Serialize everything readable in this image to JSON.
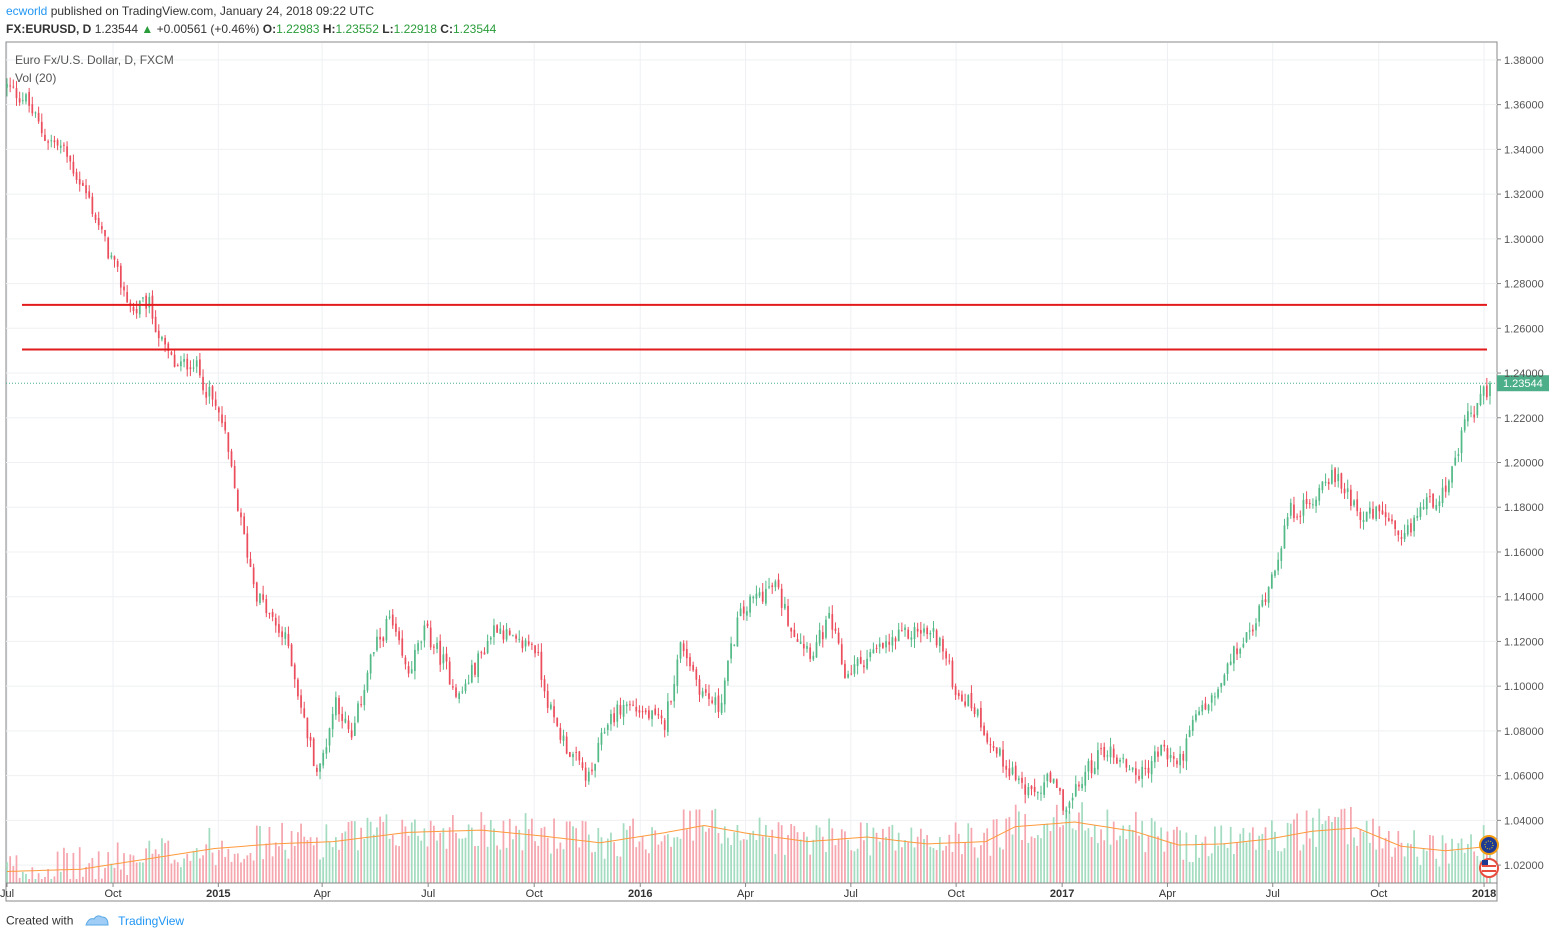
{
  "header": {
    "author": "ecworld",
    "published_text": "published on TradingView.com, January 24, 2018 09:22 UTC",
    "symbol": "FX:EURUSD, D",
    "last": "1.23544",
    "change": "+0.00561 (+0.46%)",
    "o_label": "O:",
    "o_value": "1.22983",
    "h_label": "H:",
    "h_value": "1.23552",
    "l_label": "L:",
    "l_value": "1.22918",
    "c_label": "C:",
    "c_value": "1.23544"
  },
  "legend": {
    "title": "Euro Fx/U.S. Dollar, D, FXCM",
    "volume": "Vol (20)"
  },
  "footer": {
    "created_with": "Created with",
    "brand": "TradingView"
  },
  "colors": {
    "up": "#53b987",
    "down": "#eb4d5c",
    "vol_up": "#a3dcc0",
    "vol_down": "#f5a6ae",
    "ma": "#ff9a3c",
    "hline": "#e31a1c",
    "price_label_bg": "#4caf8a"
  },
  "chart_data": {
    "type": "candlestick",
    "title": "Euro Fx/U.S. Dollar, D, FXCM",
    "symbol": "FX:EURUSD",
    "last_price": 1.23544,
    "last_price_label": "1.23544",
    "ylim": [
      1.012,
      1.388
    ],
    "y_ticks": [
      "1.38000",
      "1.36000",
      "1.34000",
      "1.32000",
      "1.30000",
      "1.28000",
      "1.26000",
      "1.24000",
      "1.22000",
      "1.20000",
      "1.18000",
      "1.16000",
      "1.14000",
      "1.12000",
      "1.10000",
      "1.08000",
      "1.06000",
      "1.04000",
      "1.02000"
    ],
    "x_ticks": [
      {
        "label": "Jul",
        "bold": false,
        "t": 0.0
      },
      {
        "label": "Oct",
        "bold": false,
        "t": 0.0715
      },
      {
        "label": "2015",
        "bold": true,
        "t": 0.1425
      },
      {
        "label": "Apr",
        "bold": false,
        "t": 0.2125
      },
      {
        "label": "Jul",
        "bold": false,
        "t": 0.284
      },
      {
        "label": "Oct",
        "bold": false,
        "t": 0.3555
      },
      {
        "label": "2016",
        "bold": true,
        "t": 0.427
      },
      {
        "label": "Apr",
        "bold": false,
        "t": 0.498
      },
      {
        "label": "Jul",
        "bold": false,
        "t": 0.569
      },
      {
        "label": "Oct",
        "bold": false,
        "t": 0.64
      },
      {
        "label": "2017",
        "bold": true,
        "t": 0.7115
      },
      {
        "label": "Apr",
        "bold": false,
        "t": 0.7825
      },
      {
        "label": "Jul",
        "bold": false,
        "t": 0.8535
      },
      {
        "label": "Oct",
        "bold": false,
        "t": 0.925
      },
      {
        "label": "2018",
        "bold": true,
        "t": 0.996
      }
    ],
    "horizontal_lines": [
      1.2705,
      1.2505
    ],
    "close_path": [
      [
        0.0,
        1.368
      ],
      [
        0.013,
        1.362
      ],
      [
        0.025,
        1.346
      ],
      [
        0.038,
        1.34
      ],
      [
        0.055,
        1.318
      ],
      [
        0.065,
        1.3
      ],
      [
        0.075,
        1.283
      ],
      [
        0.085,
        1.267
      ],
      [
        0.095,
        1.272
      ],
      [
        0.105,
        1.252
      ],
      [
        0.115,
        1.242
      ],
      [
        0.125,
        1.246
      ],
      [
        0.135,
        1.232
      ],
      [
        0.145,
        1.218
      ],
      [
        0.158,
        1.172
      ],
      [
        0.168,
        1.142
      ],
      [
        0.178,
        1.13
      ],
      [
        0.19,
        1.118
      ],
      [
        0.2,
        1.085
      ],
      [
        0.21,
        1.06
      ],
      [
        0.222,
        1.095
      ],
      [
        0.232,
        1.075
      ],
      [
        0.245,
        1.112
      ],
      [
        0.258,
        1.13
      ],
      [
        0.27,
        1.105
      ],
      [
        0.282,
        1.125
      ],
      [
        0.295,
        1.11
      ],
      [
        0.305,
        1.095
      ],
      [
        0.318,
        1.112
      ],
      [
        0.33,
        1.128
      ],
      [
        0.343,
        1.118
      ],
      [
        0.355,
        1.12
      ],
      [
        0.368,
        1.085
      ],
      [
        0.38,
        1.07
      ],
      [
        0.393,
        1.058
      ],
      [
        0.405,
        1.085
      ],
      [
        0.418,
        1.092
      ],
      [
        0.43,
        1.088
      ],
      [
        0.443,
        1.082
      ],
      [
        0.455,
        1.12
      ],
      [
        0.468,
        1.098
      ],
      [
        0.48,
        1.09
      ],
      [
        0.493,
        1.13
      ],
      [
        0.505,
        1.14
      ],
      [
        0.518,
        1.145
      ],
      [
        0.53,
        1.125
      ],
      [
        0.543,
        1.115
      ],
      [
        0.555,
        1.13
      ],
      [
        0.565,
        1.105
      ],
      [
        0.578,
        1.112
      ],
      [
        0.59,
        1.117
      ],
      [
        0.603,
        1.122
      ],
      [
        0.615,
        1.125
      ],
      [
        0.628,
        1.122
      ],
      [
        0.64,
        1.098
      ],
      [
        0.653,
        1.09
      ],
      [
        0.665,
        1.072
      ],
      [
        0.678,
        1.062
      ],
      [
        0.69,
        1.05
      ],
      [
        0.703,
        1.058
      ],
      [
        0.715,
        1.045
      ],
      [
        0.728,
        1.062
      ],
      [
        0.74,
        1.072
      ],
      [
        0.753,
        1.066
      ],
      [
        0.765,
        1.06
      ],
      [
        0.778,
        1.072
      ],
      [
        0.79,
        1.065
      ],
      [
        0.803,
        1.088
      ],
      [
        0.815,
        1.095
      ],
      [
        0.828,
        1.115
      ],
      [
        0.84,
        1.125
      ],
      [
        0.853,
        1.15
      ],
      [
        0.865,
        1.178
      ],
      [
        0.878,
        1.18
      ],
      [
        0.89,
        1.195
      ],
      [
        0.903,
        1.188
      ],
      [
        0.915,
        1.175
      ],
      [
        0.928,
        1.178
      ],
      [
        0.94,
        1.162
      ],
      [
        0.953,
        1.18
      ],
      [
        0.965,
        1.185
      ],
      [
        0.975,
        1.195
      ],
      [
        0.985,
        1.222
      ],
      [
        0.99,
        1.222
      ],
      [
        0.995,
        1.23
      ],
      [
        1.0,
        1.2354
      ]
    ],
    "volume_ma_path": [
      [
        0.0,
        0.1
      ],
      [
        0.05,
        0.12
      ],
      [
        0.1,
        0.22
      ],
      [
        0.14,
        0.3
      ],
      [
        0.18,
        0.34
      ],
      [
        0.22,
        0.36
      ],
      [
        0.27,
        0.44
      ],
      [
        0.32,
        0.46
      ],
      [
        0.36,
        0.41
      ],
      [
        0.4,
        0.35
      ],
      [
        0.44,
        0.43
      ],
      [
        0.47,
        0.5
      ],
      [
        0.5,
        0.43
      ],
      [
        0.54,
        0.36
      ],
      [
        0.58,
        0.4
      ],
      [
        0.62,
        0.34
      ],
      [
        0.66,
        0.36
      ],
      [
        0.68,
        0.49
      ],
      [
        0.72,
        0.53
      ],
      [
        0.76,
        0.45
      ],
      [
        0.79,
        0.33
      ],
      [
        0.82,
        0.34
      ],
      [
        0.85,
        0.38
      ],
      [
        0.88,
        0.45
      ],
      [
        0.91,
        0.48
      ],
      [
        0.94,
        0.32
      ],
      [
        0.97,
        0.28
      ],
      [
        1.0,
        0.32
      ]
    ]
  }
}
